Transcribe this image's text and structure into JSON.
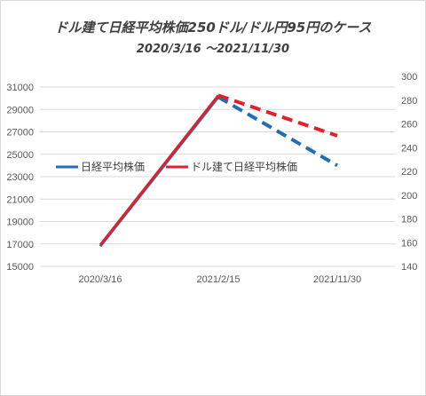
{
  "chart_data": {
    "type": "line",
    "title": "ドル建て日経平均株価250ドル/ドル円95円のケース",
    "subtitle": "2020/3/16 ～2021/11/30",
    "categories": [
      "2020/3/16",
      "2021/2/15",
      "2021/11/30"
    ],
    "y_left": {
      "ticks": [
        "15000",
        "17000",
        "19000",
        "21000",
        "23000",
        "25000",
        "27000",
        "29000",
        "31000"
      ],
      "min": 15000,
      "max": 32000
    },
    "y_right": {
      "ticks": [
        "140",
        "160",
        "180",
        "200",
        "220",
        "240",
        "260",
        "280",
        "300"
      ],
      "min": 140,
      "max": 300
    },
    "series": [
      {
        "name": "日経平均株価",
        "axis": "left",
        "color": "#1f6fb2",
        "values": [
          16800,
          30100,
          24000
        ],
        "dashed_from_index": 1
      },
      {
        "name": "ドル建て日経平均株価",
        "axis": "right",
        "color": "#e0202a",
        "values": [
          158,
          284,
          250
        ],
        "dashed_from_index": 1
      }
    ],
    "legend_position": "center-left",
    "grid": true
  }
}
